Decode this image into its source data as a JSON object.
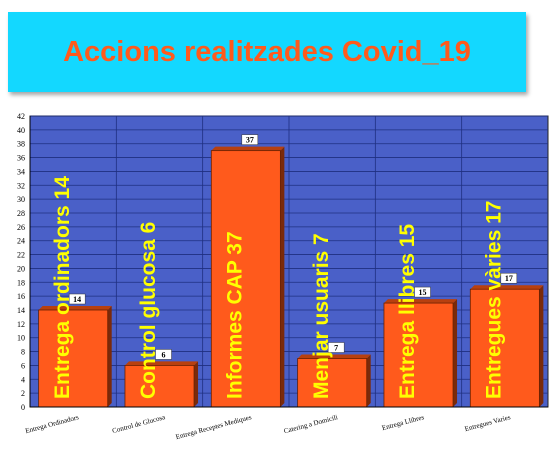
{
  "title": "Accions realitzades Covid_19",
  "colors": {
    "title_background": "#13d8ff",
    "title_text": "#ff5a1c",
    "plot_background": "#4a60c8",
    "bar": "#ff5a1c",
    "annotation_text": "#ffff00"
  },
  "chart_data": {
    "type": "bar",
    "categories": [
      "Entrega Ordinadors",
      "Control de Glucosa",
      "Entrega Receptes Mediques",
      "Catering a Domicili",
      "Entrega Llibres",
      "Entregues Varies"
    ],
    "values": [
      14,
      6,
      37,
      7,
      15,
      17
    ],
    "data_labels": [
      "14",
      "6",
      "37",
      "7",
      "15",
      "17"
    ],
    "annotations": [
      "Entrega ordinadors 14",
      "Control glucosa 6",
      "Informes CAP 37",
      "Menjar usuaris 7",
      "Entrega llibres 15",
      "Entregues vàries 17"
    ],
    "ylim": [
      0,
      42
    ],
    "yticks": [
      0,
      2,
      4,
      6,
      8,
      10,
      12,
      14,
      16,
      18,
      20,
      22,
      24,
      26,
      28,
      30,
      32,
      34,
      36,
      38,
      40,
      42
    ],
    "grid": true,
    "legend": "none"
  }
}
